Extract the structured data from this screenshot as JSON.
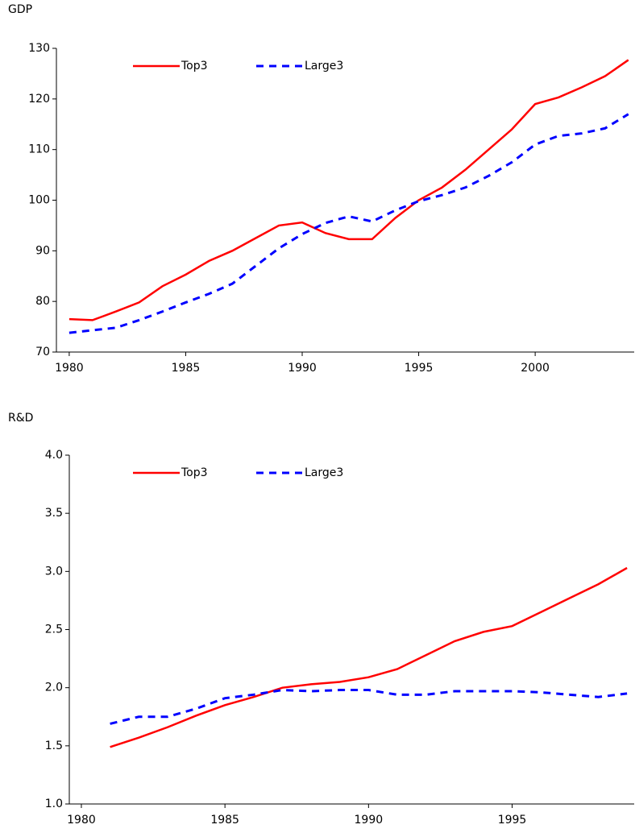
{
  "chart_data": [
    {
      "type": "line",
      "y_label": "GDP",
      "x": [
        1980,
        1981,
        1982,
        1983,
        1984,
        1985,
        1986,
        1987,
        1988,
        1989,
        1990,
        1991,
        1992,
        1993,
        1994,
        1995,
        1996,
        1997,
        1998,
        1999,
        2000,
        2001,
        2002,
        2003,
        2004
      ],
      "series": [
        {
          "name": "Top3",
          "color": "#ff0000",
          "dash": "solid",
          "values": [
            76.5,
            76.3,
            78,
            79.8,
            83,
            85.3,
            88,
            90,
            92.5,
            95,
            95.6,
            93.5,
            92.3,
            92.3,
            96.5,
            100,
            102.5,
            106,
            110,
            114,
            119,
            120.3,
            122.3,
            124.5,
            127.7
          ]
        },
        {
          "name": "Large3",
          "color": "#0000ff",
          "dash": "dashed",
          "values": [
            73.8,
            74.3,
            74.8,
            76.3,
            78,
            79.8,
            81.5,
            83.5,
            87,
            90.5,
            93.3,
            95.5,
            96.8,
            95.8,
            98,
            99.8,
            101,
            102.5,
            104.8,
            107.5,
            111,
            112.7,
            113.2,
            114.2,
            117
          ]
        }
      ],
      "xlim": [
        1979.45,
        2004.25
      ],
      "xticks": [
        1980,
        1985,
        1990,
        1995,
        2000
      ],
      "ylim": [
        70,
        130
      ],
      "yticks": [
        70,
        80,
        90,
        100,
        110,
        120,
        130
      ],
      "grid": false,
      "legend": "top"
    },
    {
      "type": "line",
      "y_label": "R&D",
      "x": [
        1981,
        1982,
        1983,
        1984,
        1985,
        1986,
        1987,
        1988,
        1989,
        1990,
        1991,
        1992,
        1993,
        1994,
        1995,
        1996,
        1997,
        1998,
        1999
      ],
      "series": [
        {
          "name": "Top3",
          "color": "#ff0000",
          "dash": "solid",
          "values": [
            1.49,
            1.57,
            1.66,
            1.76,
            1.85,
            1.92,
            2.0,
            2.03,
            2.05,
            2.09,
            2.16,
            2.28,
            2.4,
            2.48,
            2.53,
            2.65,
            2.77,
            2.89,
            3.03
          ]
        },
        {
          "name": "Large3",
          "color": "#0000ff",
          "dash": "dashed",
          "values": [
            1.69,
            1.75,
            1.75,
            1.82,
            1.91,
            1.94,
            1.98,
            1.97,
            1.98,
            1.98,
            1.94,
            1.94,
            1.97,
            1.97,
            1.97,
            1.96,
            1.94,
            1.92,
            1.95
          ]
        }
      ],
      "xlim": [
        1979.58,
        1999.25
      ],
      "xticks": [
        1980,
        1985,
        1990,
        1995
      ],
      "ylim": [
        1,
        4
      ],
      "yticks": [
        {
          "value": 1,
          "label": "1.0"
        },
        1.5,
        {
          "value": 2,
          "label": "2.0"
        },
        2.5,
        {
          "value": 3,
          "label": "3.0"
        },
        3.5,
        {
          "value": 4,
          "label": "4.0"
        }
      ],
      "grid": false,
      "legend": "top"
    }
  ]
}
